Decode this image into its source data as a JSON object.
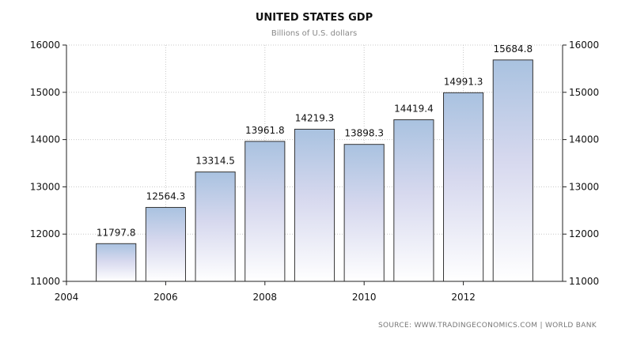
{
  "chart_data": {
    "type": "bar",
    "title": "UNITED STATES GDP",
    "subtitle": "Billions of U.S. dollars",
    "x": [
      2005,
      2006,
      2007,
      2008,
      2009,
      2010,
      2011,
      2012,
      2013
    ],
    "values": [
      11797.8,
      12564.3,
      13314.5,
      13961.8,
      14219.3,
      13898.3,
      14419.4,
      14991.3,
      15684.8
    ],
    "value_labels": [
      "11797.8",
      "12564.3",
      "13314.5",
      "13961.8",
      "14219.3",
      "13898.3",
      "14419.4",
      "14991.3",
      "15684.8"
    ],
    "xlim": [
      2004,
      2014
    ],
    "x_ticks": [
      "2004",
      "2006",
      "2008",
      "2010",
      "2012"
    ],
    "ylim": [
      11000,
      16000
    ],
    "y_ticks": [
      "11000",
      "12000",
      "13000",
      "14000",
      "15000",
      "16000"
    ],
    "y_axis_both_sides": true,
    "grid": true,
    "legend": "none",
    "colors": {
      "bar_top": "#a9c2e0",
      "bar_mid": "#d6d8ee",
      "bar_bottom": "#ffffff",
      "bar_stroke": "#333333",
      "grid": "#c8c8c8"
    }
  },
  "source": "SOURCE: WWW.TRADINGECONOMICS.COM  |  WORLD BANK"
}
